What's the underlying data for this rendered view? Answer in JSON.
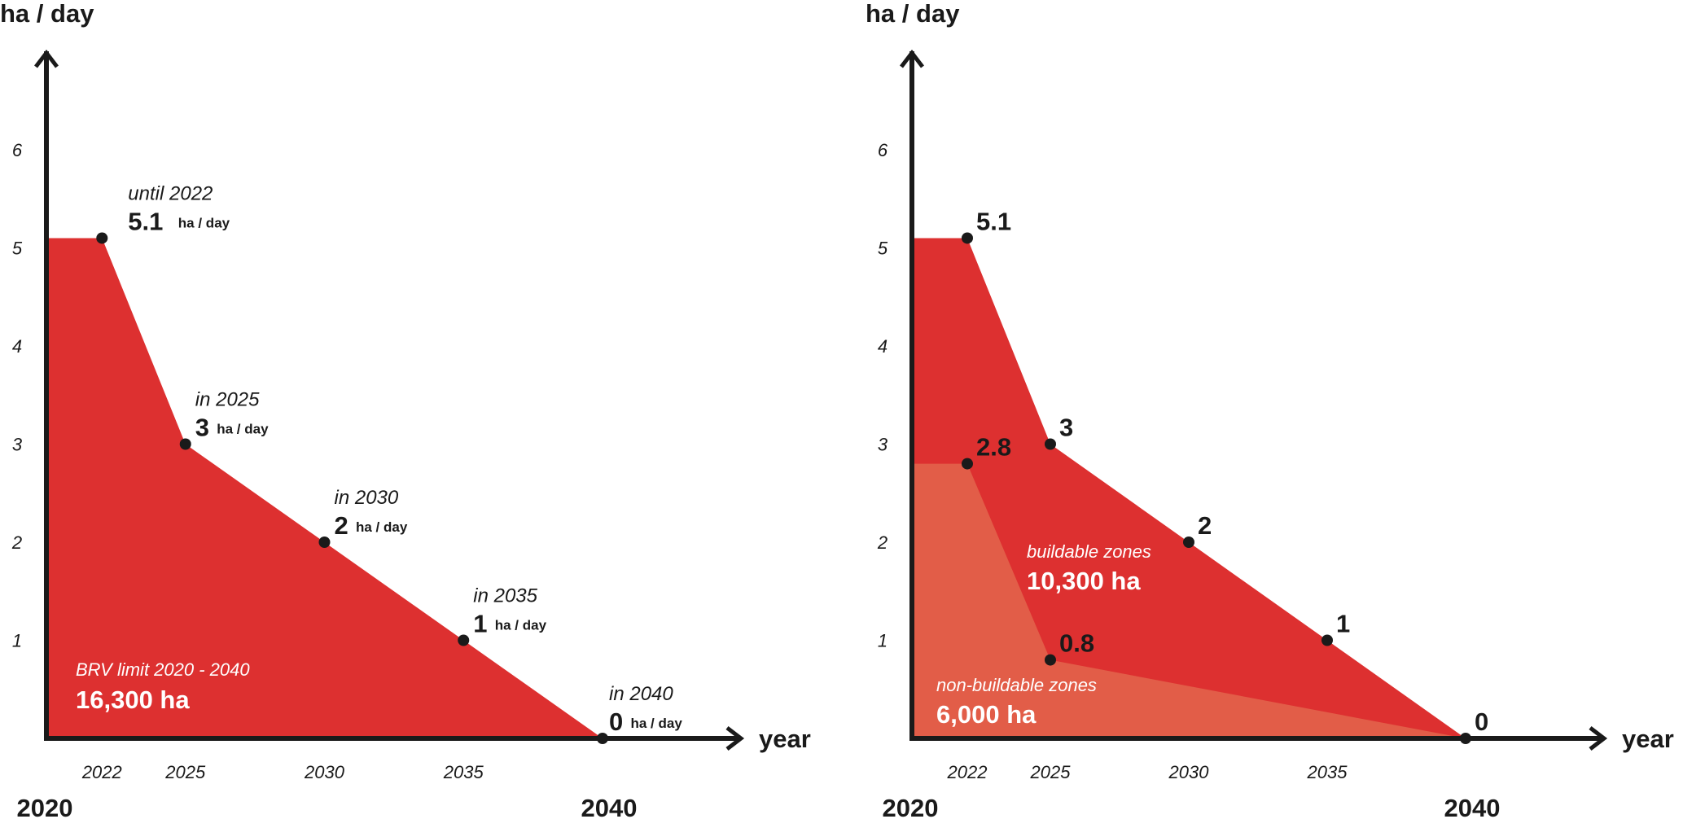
{
  "colors": {
    "area_main": "#dd3030",
    "area_light": "#e25d48",
    "axis": "#1a1a1a",
    "point": "#1a1a1a",
    "area_text": "#ffffff"
  },
  "chart_data": [
    {
      "type": "area",
      "ylabel": "ha / day",
      "xlabel": "year",
      "x_ticks": [
        "2022",
        "2025",
        "2030",
        "2035"
      ],
      "y_ticks": [
        "1",
        "2",
        "3",
        "4",
        "5",
        "6"
      ],
      "x_start_label": "2020",
      "x_end_label": "2040",
      "xlim": [
        2020,
        2040
      ],
      "ylim": [
        0,
        6.5
      ],
      "series": [
        {
          "x": [
            2022,
            2025,
            2030,
            2035,
            2040
          ],
          "values": [
            5.1,
            3,
            2,
            1,
            0
          ]
        }
      ],
      "annotations": [
        {
          "x": 2022,
          "y": 5.1,
          "label": "until 2022",
          "value": "5.1",
          "unit": "ha / day"
        },
        {
          "x": 2025,
          "y": 3,
          "label": "in 2025",
          "value": "3",
          "unit": "ha / day"
        },
        {
          "x": 2030,
          "y": 2,
          "label": "in 2030",
          "value": "2",
          "unit": "ha / day"
        },
        {
          "x": 2035,
          "y": 1,
          "label": "in 2035",
          "value": "1",
          "unit": "ha / day"
        },
        {
          "x": 2040,
          "y": 0,
          "label": "in 2040",
          "value": "0",
          "unit": "ha / day"
        }
      ],
      "area_label": {
        "title": "BRV limit 2020 - 2040",
        "value": "16,300 ha"
      }
    },
    {
      "type": "area",
      "ylabel": "ha / day",
      "xlabel": "year",
      "x_ticks": [
        "2022",
        "2025",
        "2030",
        "2035"
      ],
      "y_ticks": [
        "1",
        "2",
        "3",
        "4",
        "5",
        "6"
      ],
      "x_start_label": "2020",
      "x_end_label": "2040",
      "xlim": [
        2020,
        2040
      ],
      "ylim": [
        0,
        6.5
      ],
      "series": [
        {
          "x": [
            2022,
            2025,
            2030,
            2035,
            2040
          ],
          "values": [
            5.1,
            3,
            2,
            1,
            0
          ]
        },
        {
          "x": [
            2022,
            2025,
            2040
          ],
          "values": [
            2.8,
            0.8,
            0
          ]
        }
      ],
      "point_labels_total": [
        "5.1",
        "3",
        "2",
        "1",
        "0"
      ],
      "point_labels_nonbuildable": [
        "2.8",
        "0.8"
      ],
      "area_labels": [
        {
          "title": "buildable zones",
          "value": "10,300 ha"
        },
        {
          "title": "non-buildable zones",
          "value": "6,000 ha"
        }
      ]
    }
  ]
}
